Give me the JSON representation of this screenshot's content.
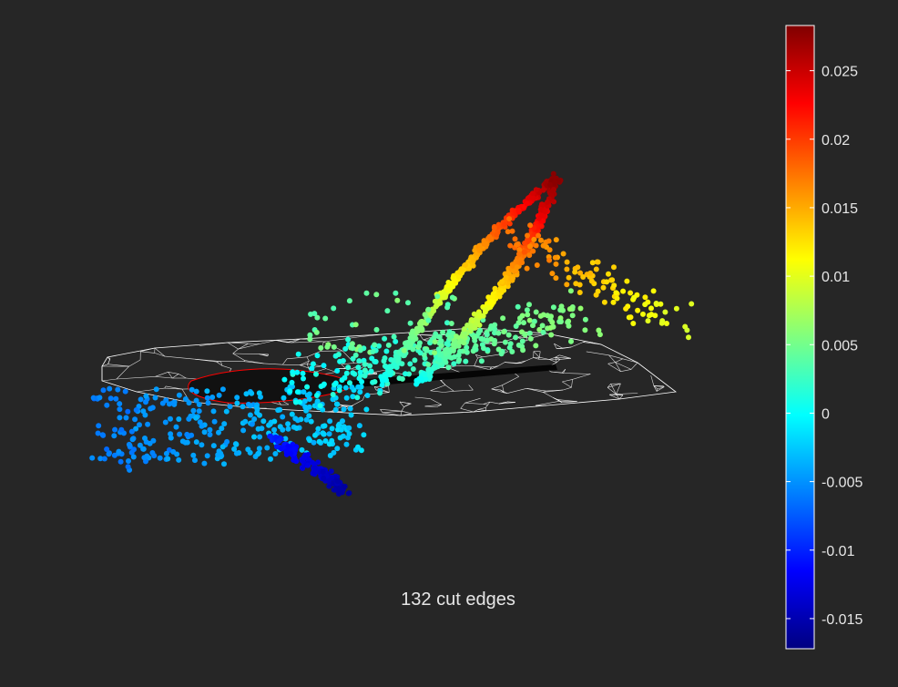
{
  "figure": {
    "caption": "132 cut edges",
    "background_color": "#262626",
    "mesh_color": "#ffffff",
    "cut_color": "#ff0000"
  },
  "chart_data": {
    "type": "scatter",
    "title": "",
    "xlabel": "",
    "ylabel": "",
    "grid": false,
    "colormap": "jet",
    "colorbar": {
      "placement": "right",
      "clim": [
        -0.0172,
        0.0283
      ],
      "ticks": [
        -0.015,
        -0.01,
        -0.005,
        0,
        0.005,
        0.01,
        0.015,
        0.02,
        0.025
      ],
      "tick_labels": [
        "-0.015",
        "-0.01",
        "-0.005",
        "0",
        "0.005",
        "0.01",
        "0.015",
        "0.02",
        "0.025"
      ]
    },
    "annotations": [
      "132 cut edges"
    ],
    "cut_edge_count": 132
  }
}
